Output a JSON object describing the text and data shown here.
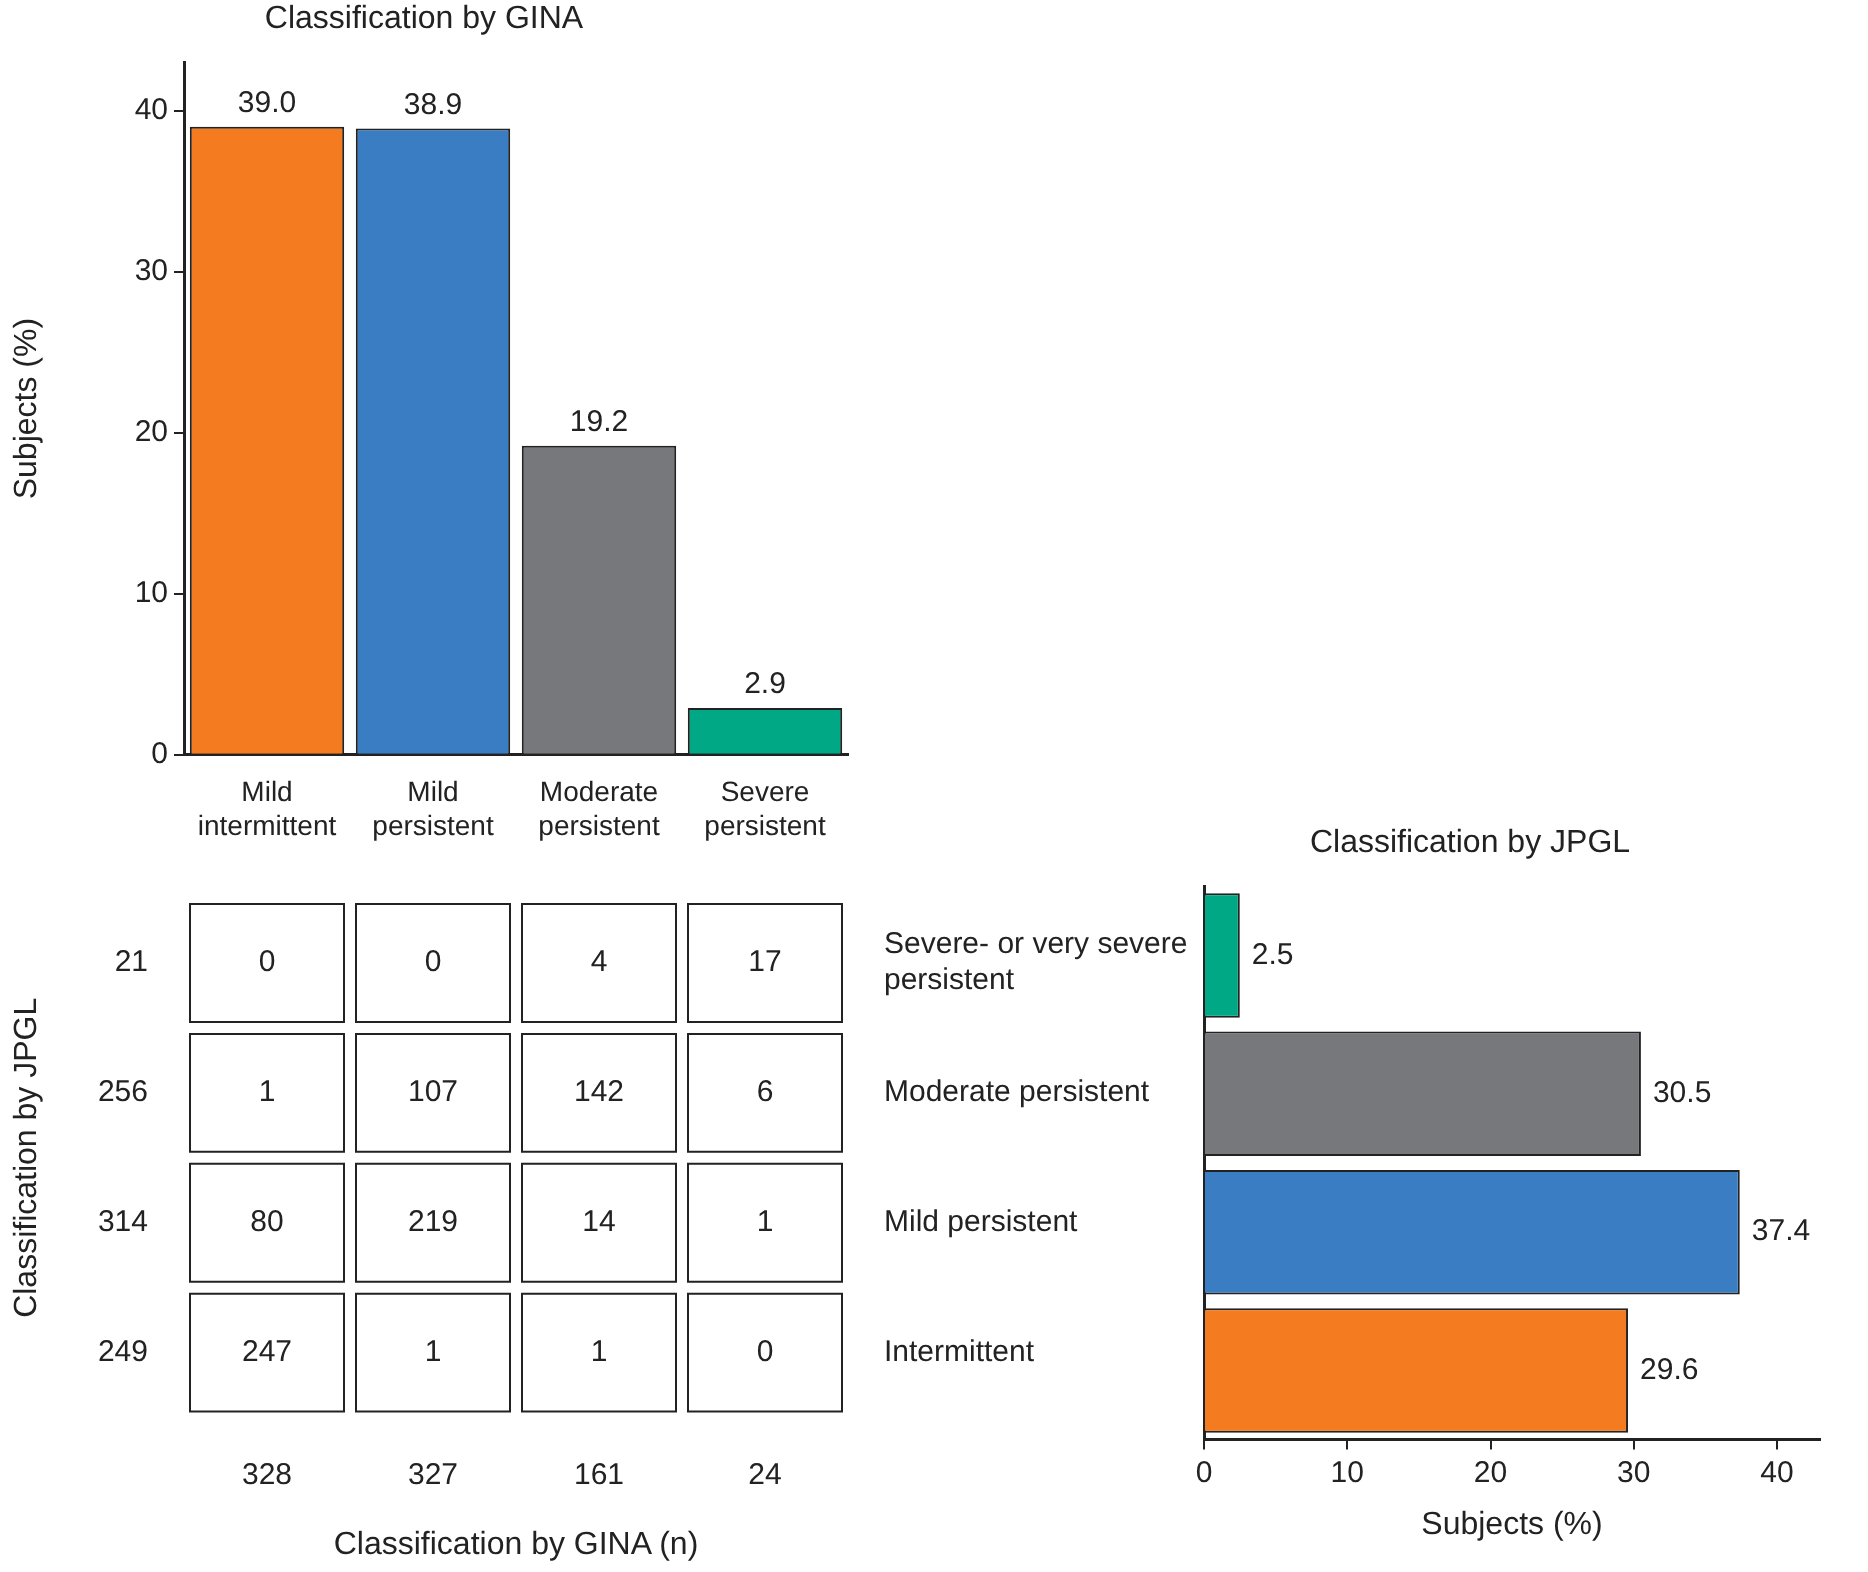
{
  "chart_data": [
    {
      "type": "bar",
      "title": "Classification by GINA",
      "ylabel": "Subjects (%)",
      "categories": [
        "Mild intermittent",
        "Mild persistent",
        "Moderate persistent",
        "Severe persistent"
      ],
      "values": [
        39.0,
        38.9,
        19.2,
        2.9
      ],
      "value_labels": [
        "39.0",
        "38.9",
        "19.2",
        "2.9"
      ],
      "colors": [
        "#f47b20",
        "#3a7dc3",
        "#77787b",
        "#00a886"
      ],
      "ylim": [
        0,
        43
      ],
      "yticks": [
        0,
        10,
        20,
        30,
        40
      ],
      "grid": false,
      "legend": false
    },
    {
      "type": "heatmap",
      "xlabel": "Classification by GINA (n)",
      "ylabel": "Classification by JPGL",
      "categories": [
        "328",
        "327",
        "161",
        "24"
      ],
      "y_categories": [
        "21",
        "256",
        "314",
        "249"
      ],
      "y2_categories": [
        "Severe- or very severe persistent",
        "Moderate persistent",
        "Mild persistent",
        "Intermittent"
      ],
      "data_labels": true,
      "cells": [
        [
          0,
          0,
          4,
          17
        ],
        [
          1,
          107,
          142,
          6
        ],
        [
          80,
          219,
          14,
          1
        ],
        [
          247,
          1,
          1,
          0
        ]
      ]
    },
    {
      "type": "bar",
      "orientation": "horizontal",
      "title": "Classification by JPGL",
      "xlabel": "Subjects (%)",
      "categories": [
        null,
        null,
        null,
        null
      ],
      "values": [
        2.5,
        30.5,
        37.4,
        29.6
      ],
      "colors": [
        "#00a886",
        "#77787b",
        "#3a7dc3",
        "#f47b20"
      ],
      "xlim": [
        0,
        43
      ],
      "xticks": [
        0,
        10,
        20,
        30,
        40
      ],
      "data_labels": true,
      "grid": false,
      "legend": false
    }
  ]
}
